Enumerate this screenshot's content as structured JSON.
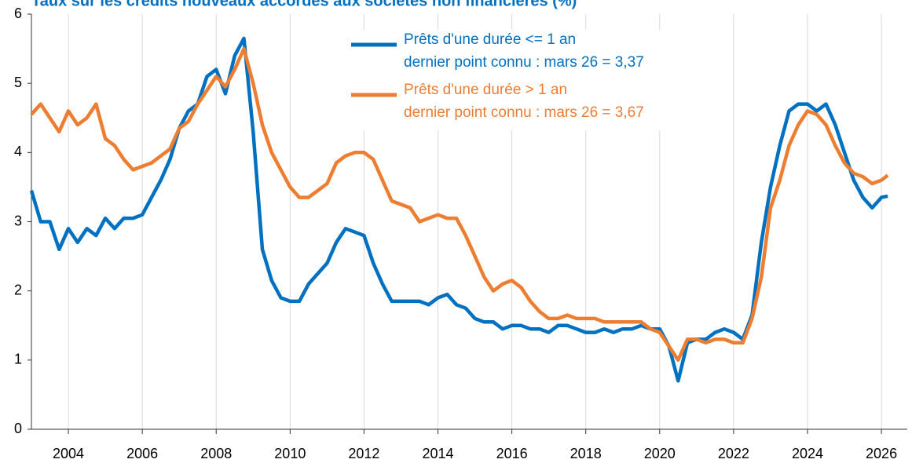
{
  "chart_data": {
    "type": "line",
    "title": "Taux sur les crédits nouveaux accordés aux sociétés non financières (%)",
    "x": [
      2003,
      2003.25,
      2003.5,
      2003.75,
      2004,
      2004.25,
      2004.5,
      2004.75,
      2005,
      2005.25,
      2005.5,
      2005.75,
      2006,
      2006.25,
      2006.5,
      2006.75,
      2007,
      2007.25,
      2007.5,
      2007.75,
      2008,
      2008.25,
      2008.5,
      2008.75,
      2009,
      2009.25,
      2009.5,
      2009.75,
      2010,
      2010.25,
      2010.5,
      2010.75,
      2011,
      2011.25,
      2011.5,
      2011.75,
      2012,
      2012.25,
      2012.5,
      2012.75,
      2013,
      2013.25,
      2013.5,
      2013.75,
      2014,
      2014.25,
      2014.5,
      2014.75,
      2015,
      2015.25,
      2015.5,
      2015.75,
      2016,
      2016.25,
      2016.5,
      2016.75,
      2017,
      2017.25,
      2017.5,
      2017.75,
      2018,
      2018.25,
      2018.5,
      2018.75,
      2019,
      2019.25,
      2019.5,
      2019.75,
      2020,
      2020.25,
      2020.5,
      2020.75,
      2021,
      2021.25,
      2021.5,
      2021.75,
      2022,
      2022.25,
      2022.5,
      2022.75,
      2023,
      2023.25,
      2023.5,
      2023.75,
      2024,
      2024.25,
      2024.5,
      2024.75,
      2025,
      2025.25,
      2025.5,
      2025.75,
      2026,
      2026.17
    ],
    "series": [
      {
        "name": "Prêts d'une durée <= 1 an",
        "annotation": "dernier point connu : mars 26 = 3,37",
        "color": "#0070c0",
        "values": [
          3.45,
          3.0,
          3.0,
          2.6,
          2.9,
          2.7,
          2.9,
          2.8,
          3.05,
          2.9,
          3.05,
          3.05,
          3.1,
          3.35,
          3.6,
          3.9,
          4.35,
          4.6,
          4.7,
          5.1,
          5.2,
          4.85,
          5.4,
          5.65,
          4.3,
          2.6,
          2.15,
          1.9,
          1.85,
          1.85,
          2.1,
          2.25,
          2.4,
          2.7,
          2.9,
          2.85,
          2.8,
          2.4,
          2.1,
          1.85,
          1.85,
          1.85,
          1.85,
          1.8,
          1.9,
          1.95,
          1.8,
          1.75,
          1.6,
          1.55,
          1.55,
          1.45,
          1.5,
          1.5,
          1.45,
          1.45,
          1.4,
          1.5,
          1.5,
          1.45,
          1.4,
          1.4,
          1.45,
          1.4,
          1.45,
          1.45,
          1.5,
          1.45,
          1.45,
          1.2,
          0.7,
          1.25,
          1.3,
          1.3,
          1.4,
          1.45,
          1.4,
          1.3,
          1.65,
          2.7,
          3.5,
          4.1,
          4.6,
          4.7,
          4.7,
          4.6,
          4.7,
          4.4,
          4.0,
          3.6,
          3.35,
          3.2,
          3.35,
          3.37
        ]
      },
      {
        "name": "Prêts d'une durée > 1 an",
        "annotation": "dernier point connu : mars 26 = 3,67",
        "color": "#ed7d31",
        "values": [
          4.55,
          4.7,
          4.5,
          4.3,
          4.6,
          4.4,
          4.5,
          4.7,
          4.2,
          4.1,
          3.9,
          3.75,
          3.8,
          3.85,
          3.95,
          4.05,
          4.35,
          4.45,
          4.7,
          4.9,
          5.1,
          4.95,
          5.2,
          5.5,
          5.0,
          4.4,
          4.0,
          3.75,
          3.5,
          3.35,
          3.35,
          3.45,
          3.55,
          3.85,
          3.95,
          4.0,
          4.0,
          3.9,
          3.6,
          3.3,
          3.25,
          3.2,
          3.0,
          3.05,
          3.1,
          3.05,
          3.05,
          2.8,
          2.5,
          2.2,
          2.0,
          2.1,
          2.15,
          2.05,
          1.85,
          1.7,
          1.6,
          1.6,
          1.65,
          1.6,
          1.6,
          1.6,
          1.55,
          1.55,
          1.55,
          1.55,
          1.55,
          1.45,
          1.4,
          1.2,
          1.0,
          1.3,
          1.3,
          1.25,
          1.3,
          1.3,
          1.25,
          1.25,
          1.6,
          2.2,
          3.2,
          3.6,
          4.1,
          4.4,
          4.6,
          4.55,
          4.4,
          4.1,
          3.85,
          3.7,
          3.65,
          3.55,
          3.6,
          3.67
        ]
      }
    ],
    "xlim": [
      2003,
      2026.7
    ],
    "ylim": [
      0,
      6
    ],
    "xticks": [
      2004,
      2006,
      2008,
      2010,
      2012,
      2014,
      2016,
      2018,
      2020,
      2022,
      2024,
      2026
    ],
    "yticks": [
      0,
      1,
      2,
      3,
      4,
      5,
      6
    ],
    "grid": "x"
  }
}
